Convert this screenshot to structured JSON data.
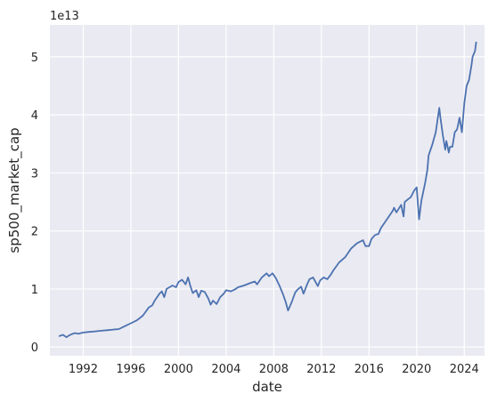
{
  "chart_data": {
    "type": "line",
    "title": "",
    "xlabel": "date",
    "ylabel": "sp500_market_cap",
    "y_offset_label": "1e13",
    "y_multiplier": 10000000000000.0,
    "xlim": [
      1989.2,
      2025.7
    ],
    "ylim": [
      -0.15,
      5.55
    ],
    "x_ticks": [
      1992,
      1996,
      2000,
      2004,
      2008,
      2012,
      2016,
      2020,
      2024
    ],
    "x_tick_labels": [
      "1992",
      "1996",
      "2000",
      "2004",
      "2008",
      "2012",
      "2016",
      "2020",
      "2024"
    ],
    "y_ticks": [
      0,
      1,
      2,
      3,
      4,
      5
    ],
    "y_tick_labels": [
      "0",
      "1",
      "2",
      "3",
      "4",
      "5"
    ],
    "grid": true,
    "legend": "none",
    "style": "seaborn-darkgrid",
    "colors": {
      "line": "#4c72b0",
      "panel": "#eaeaf2",
      "grid": "#ffffff"
    },
    "series": [
      {
        "x": [
          1990.0,
          1990.3,
          1990.6,
          1990.8,
          1991.0,
          1991.3,
          1991.6,
          1992.0,
          1992.5,
          1993.0,
          1993.5,
          1994.0,
          1994.5,
          1995.0,
          1995.5,
          1996.0,
          1996.5,
          1997.0,
          1997.5,
          1997.8,
          1998.0,
          1998.4,
          1998.6,
          1998.8,
          1999.0,
          1999.5,
          1999.8,
          2000.0,
          2000.3,
          2000.6,
          2000.8,
          2001.0,
          2001.2,
          2001.5,
          2001.7,
          2001.9,
          2002.2,
          2002.5,
          2002.7,
          2002.9,
          2003.2,
          2003.5,
          2003.8,
          2004.0,
          2004.4,
          2004.8,
          2005.0,
          2005.5,
          2006.0,
          2006.4,
          2006.6,
          2007.0,
          2007.4,
          2007.6,
          2007.9,
          2008.2,
          2008.5,
          2008.8,
          2009.0,
          2009.2,
          2009.5,
          2009.8,
          2010.0,
          2010.3,
          2010.5,
          2010.8,
          2011.0,
          2011.3,
          2011.7,
          2011.9,
          2012.2,
          2012.5,
          2012.8,
          2013.0,
          2013.5,
          2014.0,
          2014.5,
          2015.0,
          2015.5,
          2015.7,
          2016.0,
          2016.2,
          2016.5,
          2016.8,
          2017.0,
          2017.5,
          2018.0,
          2018.1,
          2018.3,
          2018.7,
          2018.9,
          2019.0,
          2019.3,
          2019.5,
          2019.8,
          2020.0,
          2020.2,
          2020.4,
          2020.7,
          2020.9,
          2021.0,
          2021.3,
          2021.6,
          2021.9,
          2022.0,
          2022.2,
          2022.4,
          2022.5,
          2022.7,
          2022.8,
          2023.0,
          2023.2,
          2023.4,
          2023.6,
          2023.8,
          2024.0,
          2024.2,
          2024.4,
          2024.6,
          2024.7,
          2024.8,
          2024.9,
          2025.0
        ],
        "y": [
          0.19,
          0.21,
          0.17,
          0.2,
          0.22,
          0.24,
          0.23,
          0.25,
          0.26,
          0.27,
          0.28,
          0.29,
          0.3,
          0.31,
          0.36,
          0.41,
          0.46,
          0.54,
          0.68,
          0.72,
          0.8,
          0.92,
          0.96,
          0.86,
          1.0,
          1.06,
          1.03,
          1.12,
          1.16,
          1.08,
          1.2,
          1.05,
          0.93,
          0.98,
          0.86,
          0.97,
          0.95,
          0.84,
          0.73,
          0.8,
          0.74,
          0.86,
          0.92,
          0.98,
          0.96,
          1.0,
          1.03,
          1.06,
          1.1,
          1.13,
          1.08,
          1.2,
          1.27,
          1.22,
          1.27,
          1.18,
          1.05,
          0.9,
          0.78,
          0.63,
          0.77,
          0.94,
          0.99,
          1.04,
          0.92,
          1.08,
          1.17,
          1.2,
          1.05,
          1.15,
          1.2,
          1.17,
          1.25,
          1.32,
          1.46,
          1.55,
          1.7,
          1.79,
          1.84,
          1.74,
          1.74,
          1.86,
          1.93,
          1.95,
          2.05,
          2.2,
          2.35,
          2.4,
          2.32,
          2.45,
          2.25,
          2.5,
          2.55,
          2.58,
          2.7,
          2.75,
          2.2,
          2.52,
          2.82,
          3.05,
          3.3,
          3.48,
          3.7,
          4.12,
          3.95,
          3.65,
          3.4,
          3.55,
          3.35,
          3.45,
          3.45,
          3.7,
          3.75,
          3.95,
          3.7,
          4.2,
          4.5,
          4.6,
          4.85,
          5.0,
          5.05,
          5.1,
          5.25
        ]
      }
    ]
  }
}
